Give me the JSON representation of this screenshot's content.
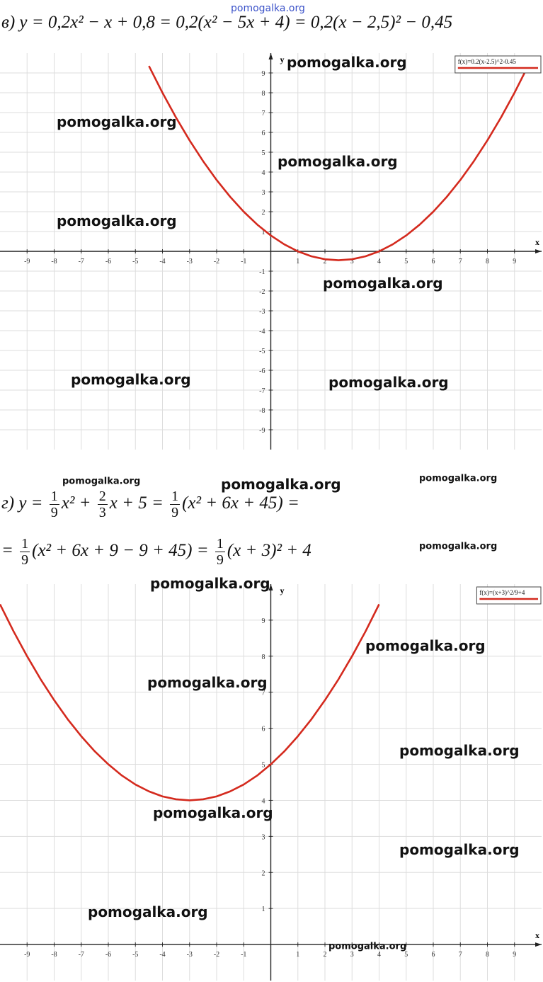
{
  "formulas": [
    [
      [
        "в) y = 0,2x² − x + 0,8 = 0,2(x² − 5x + 4) = 0,2(x − 2,5)² − 0,45"
      ]
    ],
    [
      [
        "г) y = ",
        {
          "num": "1",
          "den": "9"
        },
        "x² + ",
        {
          "num": "2",
          "den": "3"
        },
        "x + 5 = ",
        {
          "num": "1",
          "den": "9"
        },
        "(x² + 6x + 45) ="
      ],
      [
        "= ",
        {
          "num": "1",
          "den": "9"
        },
        "(x² + 6x + 9 − 9 + 45) = ",
        {
          "num": "1",
          "den": "9"
        },
        "(x + 3)² + 4"
      ]
    ]
  ],
  "watermarks": [
    "pomogalka.org",
    "pomogalka.org",
    "pomogalka.org",
    "pomogalka.org",
    "pomogalka.org",
    "pomogalka.org",
    "pomogalka.org",
    "pomogalka.org",
    "pomogalka.org",
    "pomogalka.org",
    "pomogalka.org",
    "pomogalka.org",
    "pomogalka.org",
    "pomogalka.org",
    "pomogalka.org",
    "pomogalka.org",
    "pomogalka.org",
    "pomogalka.org",
    "pomogalka.org",
    "pomogalka.org"
  ],
  "chart_data": [
    {
      "type": "line",
      "x_label": "x",
      "y_label": "y",
      "x": [
        -4.5,
        -4,
        -3.5,
        -3,
        -2.5,
        -2,
        -1.5,
        -1,
        -0.5,
        0,
        0.5,
        1,
        1.5,
        2,
        2.5,
        3,
        3.5,
        4,
        4.5,
        5,
        5.5,
        6,
        6.5,
        7,
        7.5,
        8,
        8.5,
        9,
        9.5
      ],
      "series": [
        {
          "name": "f(x)=0.2(x-2.5)^2-0.45",
          "color": "#d42a1e",
          "values": [
            9.35,
            8.0,
            6.75,
            5.6,
            4.55,
            3.6,
            2.75,
            2.0,
            1.35,
            0.8,
            0.35,
            0,
            -0.25,
            -0.4,
            -0.45,
            -0.4,
            -0.25,
            0,
            0.35,
            0.8,
            1.35,
            2.0,
            2.75,
            3.6,
            4.55,
            5.6,
            6.75,
            8.0,
            9.35
          ]
        }
      ],
      "xlim": [
        -10,
        10
      ],
      "ylim": [
        -10,
        10
      ],
      "xticks": [
        -9,
        -8,
        -7,
        -6,
        -5,
        -4,
        -3,
        -2,
        -1,
        1,
        2,
        3,
        4,
        5,
        6,
        7,
        8,
        9
      ],
      "yticks": [
        -9,
        -8,
        -7,
        -6,
        -5,
        -4,
        -3,
        -2,
        -1,
        1,
        2,
        3,
        4,
        5,
        6,
        7,
        8,
        9
      ],
      "grid": true,
      "legend": "upper right"
    },
    {
      "type": "line",
      "x_label": "x",
      "y_label": "y",
      "x": [
        -10,
        -9.5,
        -9,
        -8.5,
        -8,
        -7.5,
        -7,
        -6.5,
        -6,
        -5.5,
        -5,
        -4.5,
        -4,
        -3.5,
        -3,
        -2.5,
        -2,
        -1.5,
        -1,
        -0.5,
        0,
        0.5,
        1,
        1.5,
        2,
        2.5,
        3,
        3.5,
        4
      ],
      "series": [
        {
          "name": "f(x)=(x+3)^2/9+4",
          "color": "#d42a1e",
          "values": [
            9.44,
            8.69,
            8,
            7.36,
            6.78,
            6.25,
            5.78,
            5.36,
            5,
            4.69,
            4.44,
            4.25,
            4.11,
            4.03,
            4,
            4.03,
            4.11,
            4.25,
            4.44,
            4.69,
            5,
            5.36,
            5.78,
            6.25,
            6.78,
            7.36,
            8,
            8.69,
            9.44
          ]
        }
      ],
      "xlim": [
        -10,
        10
      ],
      "ylim": [
        -1,
        10
      ],
      "xticks": [
        -9,
        -8,
        -7,
        -6,
        -5,
        -4,
        -3,
        -2,
        -1,
        1,
        2,
        3,
        4,
        5,
        6,
        7,
        8,
        9
      ],
      "yticks": [
        1,
        2,
        3,
        4,
        5,
        6,
        7,
        8,
        9
      ],
      "grid": true,
      "legend": "upper right"
    }
  ]
}
